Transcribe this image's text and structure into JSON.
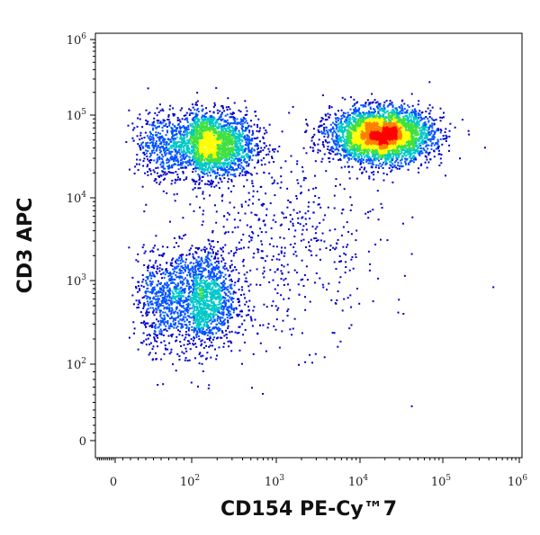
{
  "chart_data": {
    "type": "scatter",
    "subtype": "flow-cytometry-density-dot-plot",
    "title": "",
    "xlabel": "CD154 PE-Cy™7",
    "ylabel": "CD3 APC",
    "x_scale": "biexponential-log",
    "y_scale": "biexponential-log",
    "xlim": [
      -100,
      1000000
    ],
    "ylim": [
      -10,
      1000000
    ],
    "x_ticks": [
      {
        "value": 0,
        "base": "0",
        "exp": ""
      },
      {
        "value": 100,
        "base": "10",
        "exp": "2"
      },
      {
        "value": 1000,
        "base": "10",
        "exp": "3"
      },
      {
        "value": 10000,
        "base": "10",
        "exp": "4"
      },
      {
        "value": 100000,
        "base": "10",
        "exp": "5"
      },
      {
        "value": 1000000,
        "base": "10",
        "exp": "6"
      }
    ],
    "y_ticks": [
      {
        "value": 0,
        "base": "0",
        "exp": ""
      },
      {
        "value": 100,
        "base": "10",
        "exp": "2"
      },
      {
        "value": 1000,
        "base": "10",
        "exp": "3"
      },
      {
        "value": 10000,
        "base": "10",
        "exp": "4"
      },
      {
        "value": 100000,
        "base": "10",
        "exp": "5"
      },
      {
        "value": 1000000,
        "base": "10",
        "exp": "6"
      }
    ],
    "grid": false,
    "legend": "none",
    "color_scale": [
      "#0000c8",
      "#0050ff",
      "#00c8c8",
      "#40e040",
      "#ffff00",
      "#ff8000",
      "#ff0000"
    ],
    "populations": [
      {
        "center_x": 150,
        "center_y": 45000,
        "spread_x_decades": 0.28,
        "spread_y_decades": 0.2,
        "relative_count": 0.3
      },
      {
        "center_x": 18000,
        "center_y": 58000,
        "spread_x_decades": 0.3,
        "spread_y_decades": 0.16,
        "relative_count": 0.42
      },
      {
        "center_x": 110,
        "center_y": 600,
        "spread_x_decades": 0.24,
        "spread_y_decades": 0.3,
        "relative_count": 0.22
      },
      {
        "center_x": 1200,
        "center_y": 3000,
        "spread_x_decades": 0.6,
        "spread_y_decades": 0.6,
        "relative_count": 0.06
      }
    ]
  }
}
